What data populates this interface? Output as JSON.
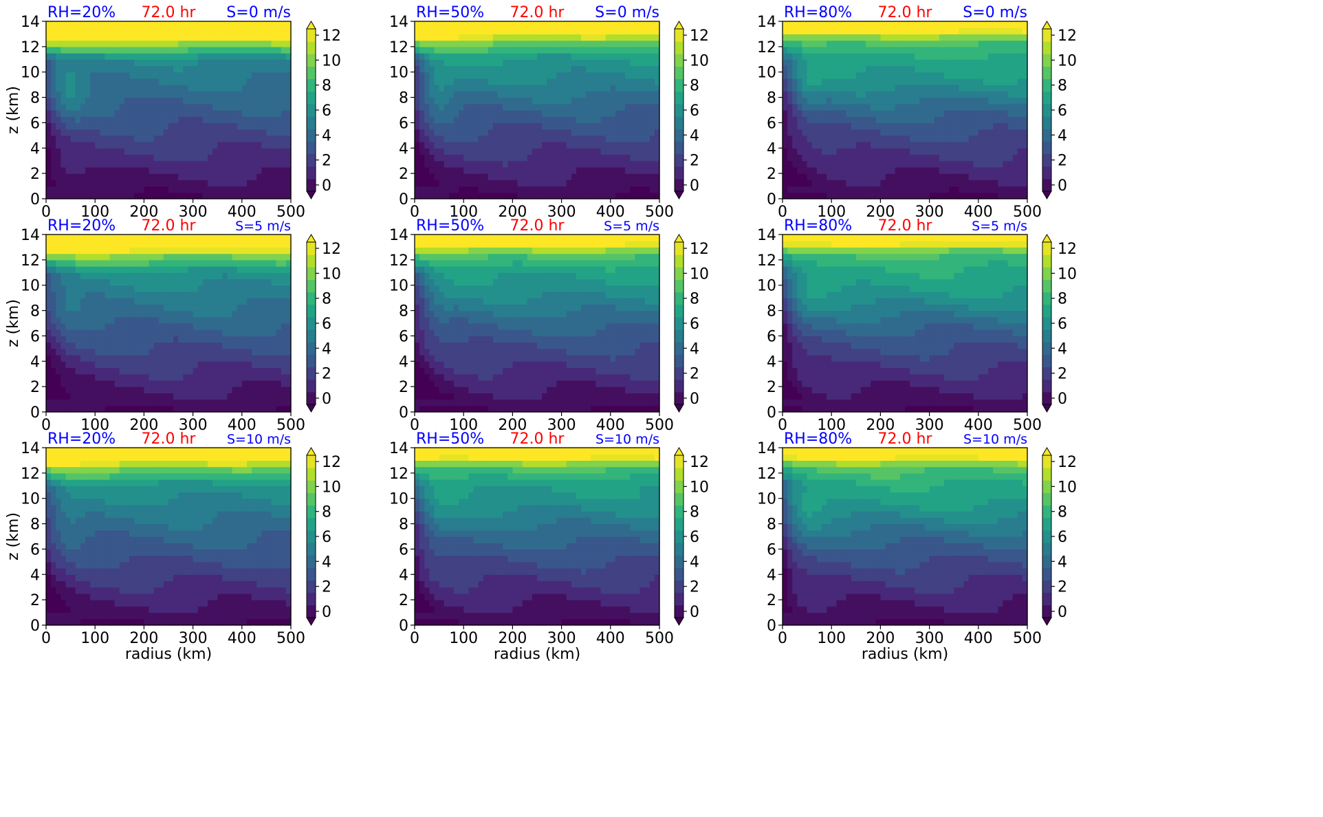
{
  "figure": {
    "shared_xlabel": "radius (km)",
    "shared_ylabel": "z (km)",
    "time_label": "72.0 hr"
  },
  "colors": {
    "label_blue": "#0000ff",
    "label_red": "#ff0000",
    "colormap": "viridis"
  },
  "chart_data": {
    "type": "heatmap",
    "layout": "3x3 grid of filled-contour panels",
    "x": {
      "label": "radius (km)",
      "range": [
        0,
        500
      ],
      "ticks": [
        0,
        100,
        200,
        300,
        400,
        500
      ]
    },
    "y": {
      "label": "z (km)",
      "range": [
        0,
        14
      ],
      "ticks": [
        0,
        2,
        4,
        6,
        8,
        10,
        12,
        14
      ]
    },
    "colorbar": {
      "levels": [
        0,
        1,
        2,
        3,
        4,
        5,
        6,
        7,
        8,
        9,
        10,
        11,
        12,
        13
      ],
      "ticks": [
        0,
        2,
        4,
        6,
        8,
        10,
        12
      ],
      "extend": "both",
      "colormap": "viridis"
    },
    "rows": [
      {
        "shear_label": "S=0 m/s"
      },
      {
        "shear_label": "S=5 m/s"
      },
      {
        "shear_label": "S=10 m/s"
      }
    ],
    "columns": [
      {
        "rh_label": "RH=20%"
      },
      {
        "rh_label": "RH=50%"
      },
      {
        "rh_label": "RH=80%"
      }
    ],
    "time_label": "72.0 hr"
  }
}
